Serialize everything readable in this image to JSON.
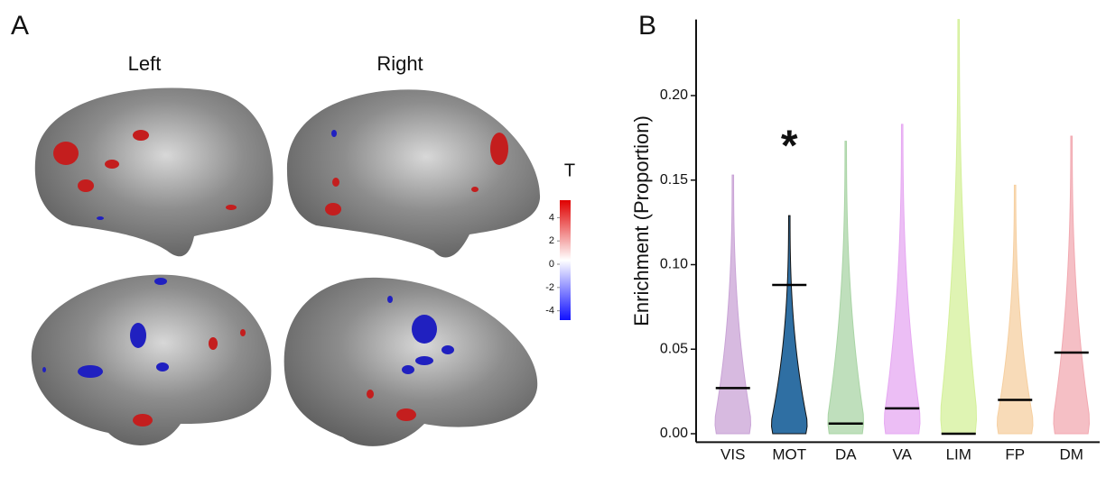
{
  "panel_a": {
    "label": "A",
    "hemispheres": [
      "Left",
      "Right"
    ],
    "colorbar": {
      "title": "T",
      "range": [
        -4.8,
        5.5
      ],
      "ticks": [
        4,
        2,
        0,
        -2,
        -4
      ]
    }
  },
  "chart_data": {
    "type": "violin",
    "panel_label": "B",
    "y_label": "Enrichment (Proportion)",
    "categories": [
      "VIS",
      "MOT",
      "DA",
      "VA",
      "LIM",
      "FP",
      "DM"
    ],
    "values": [
      0.027,
      0.088,
      0.006,
      0.015,
      0.0,
      0.02,
      0.048
    ],
    "maxima": [
      0.153,
      0.129,
      0.173,
      0.183,
      0.245,
      0.147,
      0.176
    ],
    "colors": [
      "#c9a3d6",
      "#2f6fa3",
      "#a9d4a5",
      "#e6a8f2",
      "#d4f09a",
      "#f6cfa0",
      "#f2a9b1"
    ],
    "annotations": [
      {
        "category": "MOT",
        "text": "*"
      }
    ],
    "ylim": [
      -0.005,
      0.245
    ],
    "yticks": [
      {
        "value": 0,
        "label": "0.00"
      },
      {
        "value": 0.05,
        "label": "0.05"
      },
      {
        "value": 0.1,
        "label": "0.10"
      },
      {
        "value": 0.15,
        "label": "0.15"
      },
      {
        "value": 0.2,
        "label": "0.20"
      }
    ]
  }
}
